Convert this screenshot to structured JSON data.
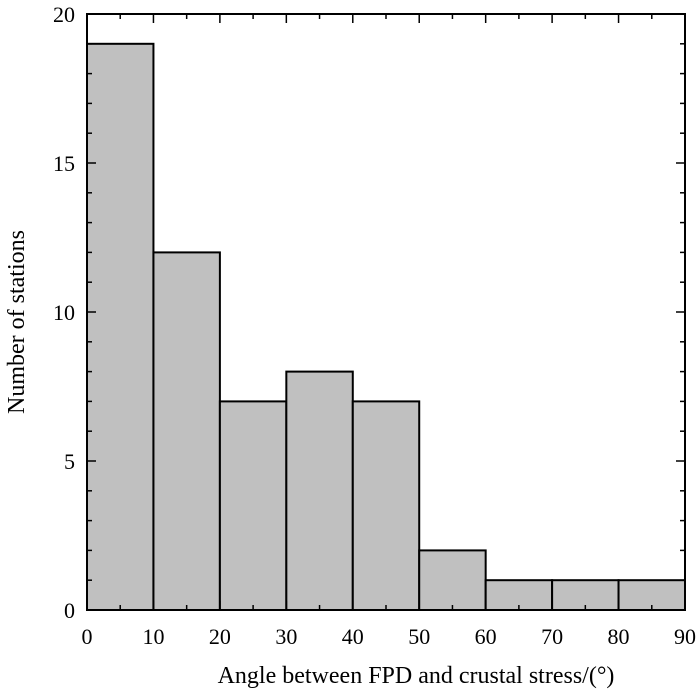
{
  "chart_data": {
    "type": "bar",
    "title": "",
    "xlabel": "Angle between FPD and crustal stress/(°)",
    "ylabel": "Number of stations",
    "bin_edges": [
      0,
      10,
      20,
      30,
      40,
      50,
      60,
      70,
      80,
      90
    ],
    "values": [
      19,
      12,
      7,
      8,
      7,
      2,
      1,
      1,
      1
    ],
    "xlim": [
      0,
      90
    ],
    "ylim": [
      0,
      20
    ],
    "x_ticks": [
      0,
      10,
      20,
      30,
      40,
      50,
      60,
      70,
      80,
      90
    ],
    "y_ticks": [
      0,
      5,
      10,
      15,
      20
    ],
    "grid": false,
    "bar_color": "#c0c0c0",
    "edge_color": "#000000"
  }
}
